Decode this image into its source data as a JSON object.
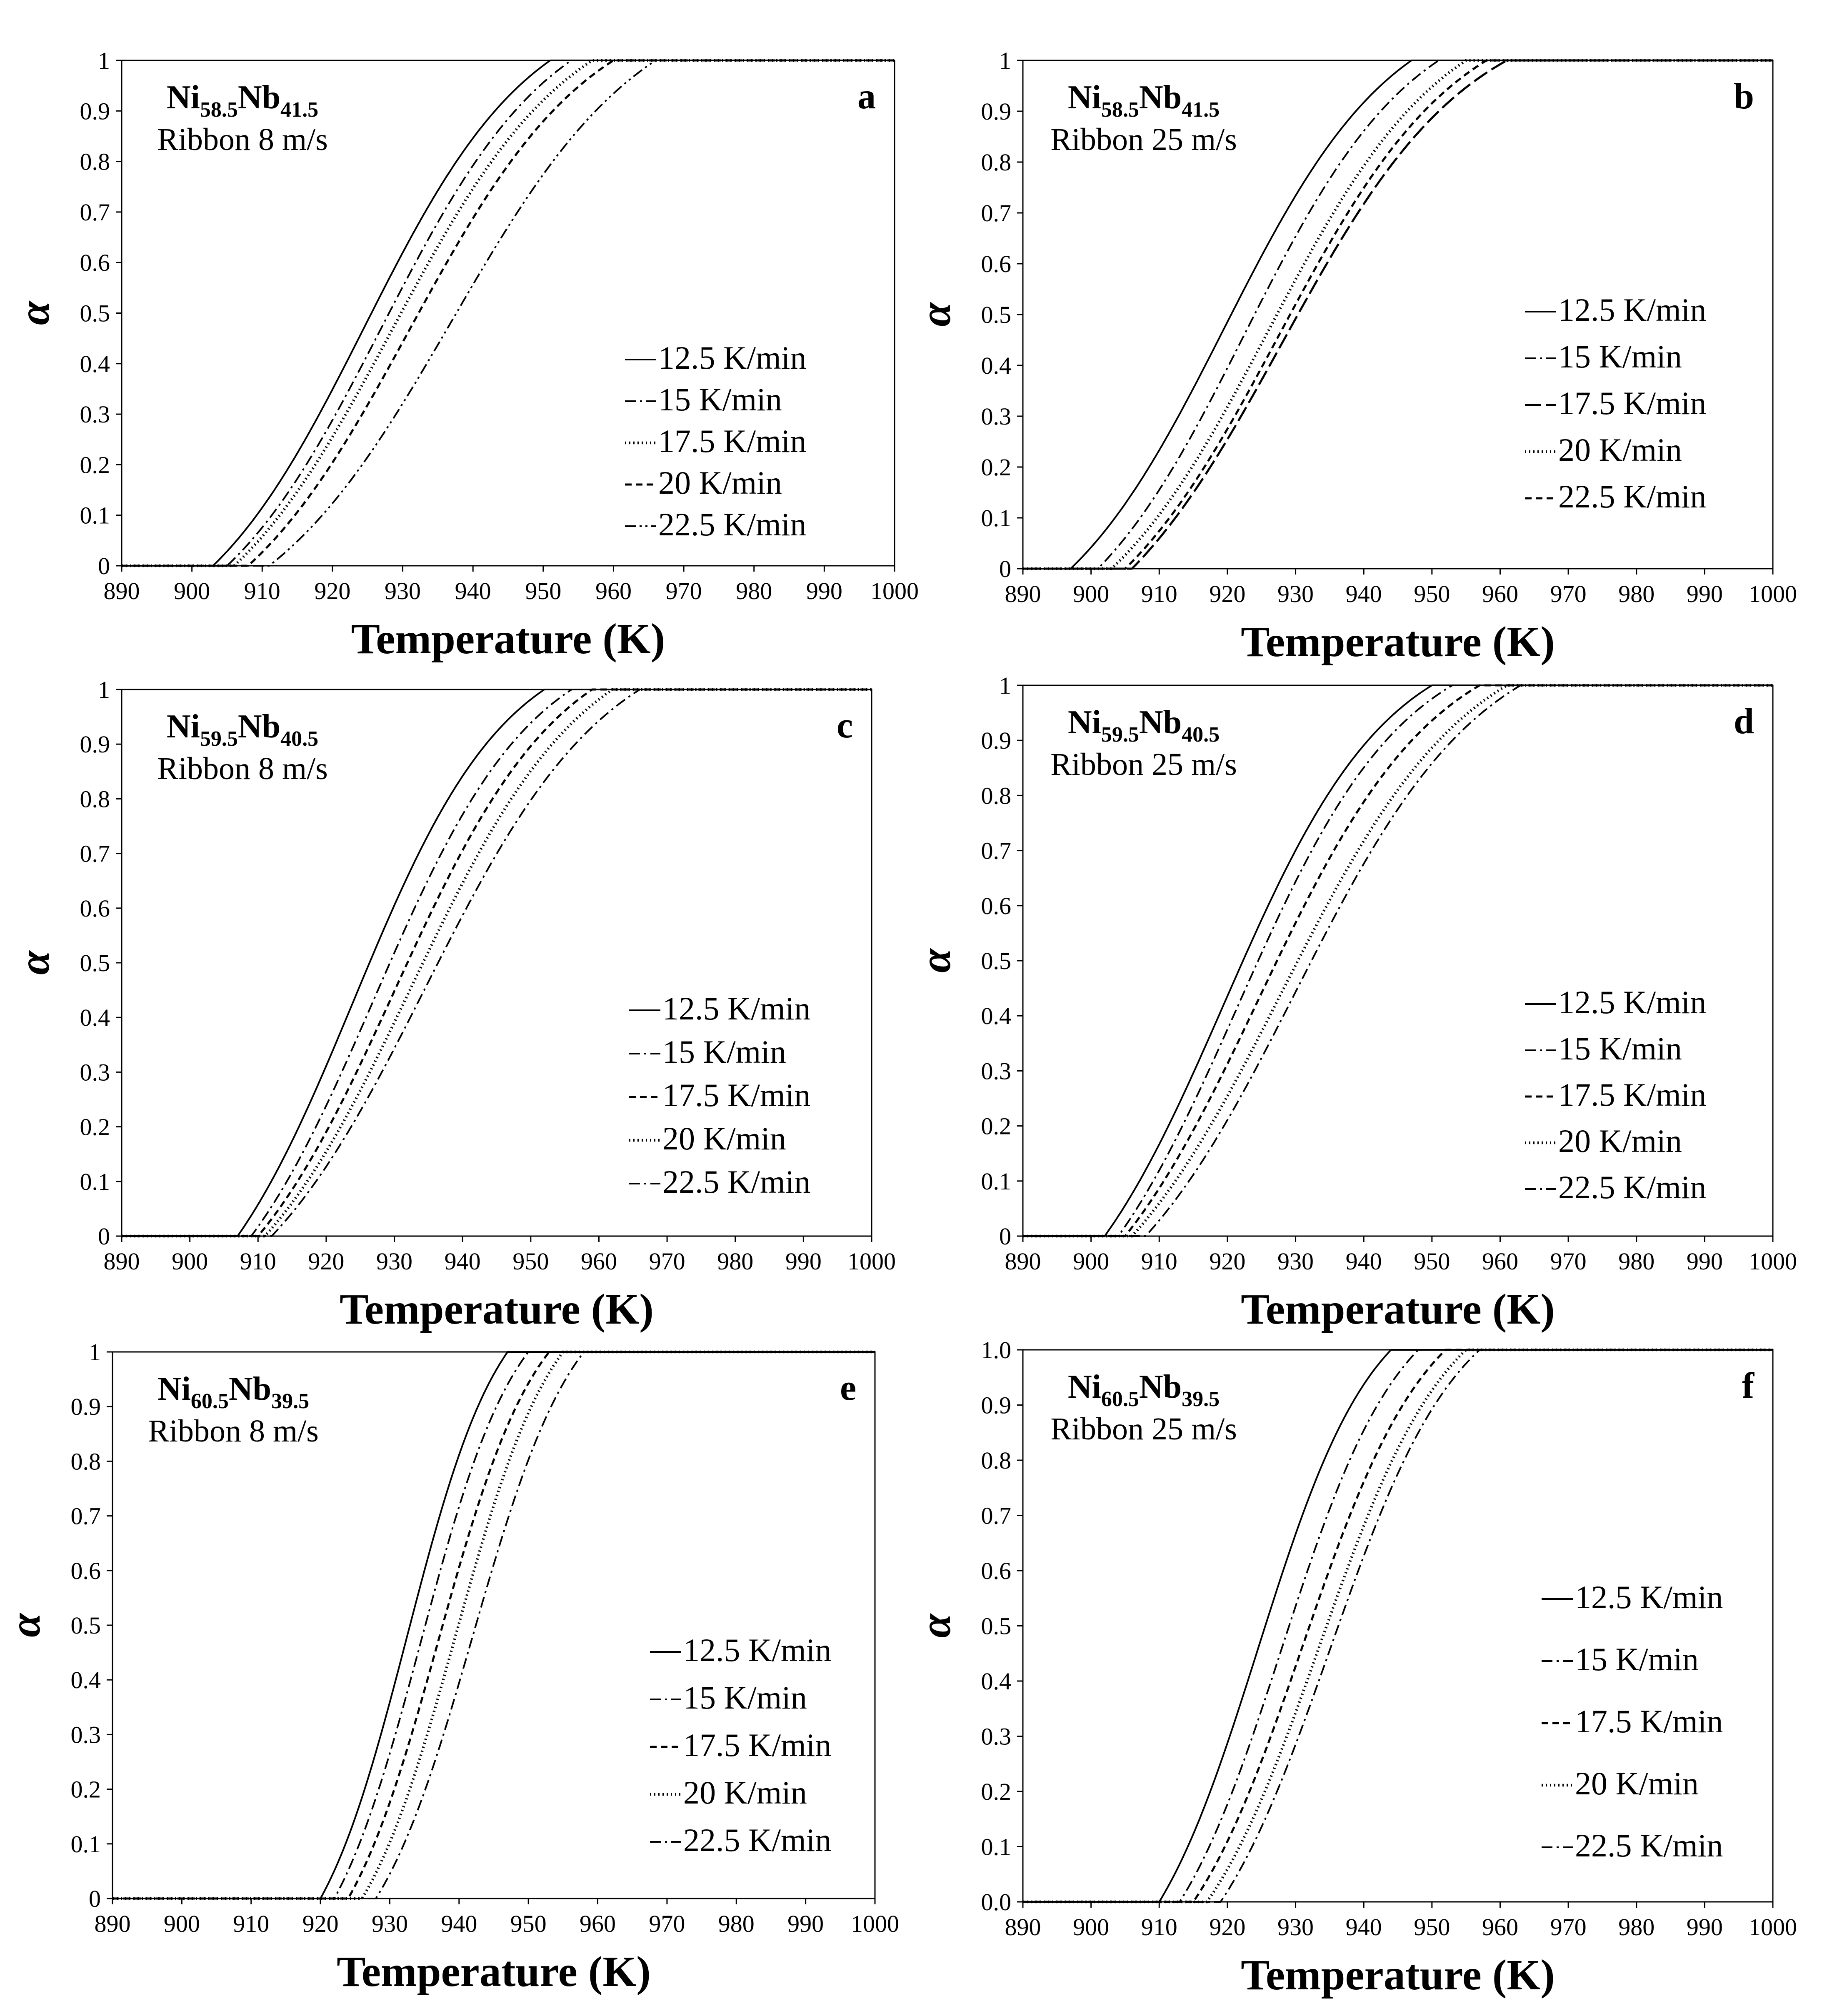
{
  "chart_data": [
    {
      "type": "line",
      "panel_label": "a",
      "composition": {
        "ni": "Ni",
        "ni_sub": "58.5",
        "nb": "Nb",
        "nb_sub": "41.5"
      },
      "ribbon": "Ribbon 8 m/s",
      "xlabel": "Temperature (K)",
      "ylabel": "α",
      "xlim": [
        890,
        1000
      ],
      "ylim": [
        0,
        1
      ],
      "xticks": [
        "890",
        "900",
        "910",
        "920",
        "930",
        "940",
        "950",
        "960",
        "970",
        "980",
        "990",
        "1000"
      ],
      "yticks": [
        "0",
        "0.1",
        "0.2",
        "0.3",
        "0.4",
        "0.5",
        "0.6",
        "0.7",
        "0.8",
        "0.9",
        "1"
      ],
      "legend_placement": "lower-right",
      "series": [
        {
          "name": "12.5 K/min",
          "style": "solid",
          "t_start": 903,
          "t_mid": 924.5,
          "t_end": 951
        },
        {
          "name": "15 K/min",
          "style": "dashdot",
          "t_start": 905,
          "t_mid": 927,
          "t_end": 954
        },
        {
          "name": "17.5 K/min",
          "style": "dotted",
          "t_start": 906,
          "t_mid": 928.5,
          "t_end": 957
        },
        {
          "name": "20 K/min",
          "style": "dashed",
          "t_start": 908,
          "t_mid": 931,
          "t_end": 960
        },
        {
          "name": "22.5 K/min",
          "style": "dashdotdot",
          "t_start": 911,
          "t_mid": 937,
          "t_end": 966
        }
      ]
    },
    {
      "type": "line",
      "panel_label": "b",
      "composition": {
        "ni": "Ni",
        "ni_sub": "58.5",
        "nb": "Nb",
        "nb_sub": "41.5"
      },
      "ribbon": "Ribbon 25 m/s",
      "xlabel": "Temperature (K)",
      "ylabel": "α",
      "xlim": [
        890,
        1000
      ],
      "ylim": [
        0,
        1
      ],
      "xticks": [
        "890",
        "900",
        "910",
        "920",
        "930",
        "940",
        "950",
        "960",
        "970",
        "980",
        "990",
        "1000"
      ],
      "yticks": [
        "0",
        "0.1",
        "0.2",
        "0.3",
        "0.4",
        "0.5",
        "0.6",
        "0.7",
        "0.8",
        "0.9",
        "1"
      ],
      "legend_placement": "lower-right",
      "series": [
        {
          "name": "12.5 K/min",
          "style": "solid",
          "t_start": 897,
          "t_mid": 919.5,
          "t_end": 947
        },
        {
          "name": "15 K/min",
          "style": "dashdot",
          "t_start": 901,
          "t_mid": 922.5,
          "t_end": 951
        },
        {
          "name": "17.5 K/min",
          "style": "longdash",
          "t_start": 906,
          "t_mid": 928,
          "t_end": 961
        },
        {
          "name": "20 K/min",
          "style": "dotted",
          "t_start": 903,
          "t_mid": 926,
          "t_end": 955
        },
        {
          "name": "22.5 K/min",
          "style": "dashed",
          "t_start": 905,
          "t_mid": 927.5,
          "t_end": 958
        }
      ]
    },
    {
      "type": "line",
      "panel_label": "c",
      "composition": {
        "ni": "Ni",
        "ni_sub": "59.5",
        "nb": "Nb",
        "nb_sub": "40.5"
      },
      "ribbon": "Ribbon 8 m/s",
      "xlabel": "Temperature (K)",
      "ylabel": "α",
      "xlim": [
        890,
        1000
      ],
      "ylim": [
        0,
        1
      ],
      "xticks": [
        "890",
        "900",
        "910",
        "920",
        "930",
        "940",
        "950",
        "960",
        "970",
        "980",
        "990",
        "1000"
      ],
      "yticks": [
        "0",
        "0.1",
        "0.2",
        "0.3",
        "0.4",
        "0.5",
        "0.6",
        "0.7",
        "0.8",
        "0.9",
        "1"
      ],
      "legend_placement": "lower-right",
      "series": [
        {
          "name": "12.5 K/min",
          "style": "solid",
          "t_start": 907,
          "t_mid": 924,
          "t_end": 952
        },
        {
          "name": "15 K/min",
          "style": "dashdot",
          "t_start": 909,
          "t_mid": 927,
          "t_end": 956
        },
        {
          "name": "17.5 K/min",
          "style": "dashed",
          "t_start": 910,
          "t_mid": 930,
          "t_end": 959
        },
        {
          "name": "20 K/min",
          "style": "dotted",
          "t_start": 911,
          "t_mid": 932.5,
          "t_end": 962
        },
        {
          "name": "22.5 K/min",
          "style": "dashdot",
          "t_start": 912,
          "t_mid": 934.5,
          "t_end": 966
        }
      ]
    },
    {
      "type": "line",
      "panel_label": "d",
      "composition": {
        "ni": "Ni",
        "ni_sub": "59.5",
        "nb": "Nb",
        "nb_sub": "40.5"
      },
      "ribbon": "Ribbon 25 m/s",
      "xlabel": "Temperature (K)",
      "ylabel": "α",
      "xlim": [
        890,
        1000
      ],
      "ylim": [
        0,
        1
      ],
      "xticks": [
        "890",
        "900",
        "910",
        "920",
        "930",
        "940",
        "950",
        "960",
        "970",
        "980",
        "990",
        "1000"
      ],
      "yticks": [
        "0",
        "0.1",
        "0.2",
        "0.3",
        "0.4",
        "0.5",
        "0.6",
        "0.7",
        "0.8",
        "0.9",
        "1"
      ],
      "legend_placement": "lower-right",
      "series": [
        {
          "name": "12.5 K/min",
          "style": "solid",
          "t_start": 902,
          "t_mid": 919.5,
          "t_end": 950
        },
        {
          "name": "15 K/min",
          "style": "dashdot",
          "t_start": 904,
          "t_mid": 921.5,
          "t_end": 953
        },
        {
          "name": "17.5 K/min",
          "style": "dashed",
          "t_start": 905,
          "t_mid": 924.5,
          "t_end": 957
        },
        {
          "name": "20 K/min",
          "style": "dotted",
          "t_start": 906,
          "t_mid": 928,
          "t_end": 961
        },
        {
          "name": "22.5 K/min",
          "style": "dashdot",
          "t_start": 908,
          "t_mid": 930,
          "t_end": 963
        }
      ]
    },
    {
      "type": "line",
      "panel_label": "e",
      "composition": {
        "ni": "Ni",
        "ni_sub": "60.5",
        "nb": "Nb",
        "nb_sub": "39.5"
      },
      "ribbon": "Ribbon 8 m/s",
      "xlabel": "Temperature (K)",
      "ylabel": "α",
      "xlim": [
        890,
        1000
      ],
      "ylim": [
        0,
        1
      ],
      "xticks": [
        "890",
        "900",
        "910",
        "920",
        "930",
        "940",
        "950",
        "960",
        "970",
        "980",
        "990",
        "1000"
      ],
      "yticks": [
        "0",
        "0.1",
        "0.2",
        "0.3",
        "0.4",
        "0.5",
        "0.6",
        "0.7",
        "0.8",
        "0.9",
        "1"
      ],
      "legend_placement": "lower-right",
      "series": [
        {
          "name": "12.5 K/min",
          "style": "solid",
          "t_start": 920,
          "t_mid": 932.5,
          "t_end": 947
        },
        {
          "name": "15 K/min",
          "style": "dashdot",
          "t_start": 922,
          "t_mid": 934.5,
          "t_end": 950
        },
        {
          "name": "17.5 K/min",
          "style": "dashed",
          "t_start": 924,
          "t_mid": 937,
          "t_end": 953
        },
        {
          "name": "20 K/min",
          "style": "dotted",
          "t_start": 926,
          "t_mid": 939.5,
          "t_end": 955
        },
        {
          "name": "22.5 K/min",
          "style": "dashdot",
          "t_start": 928,
          "t_mid": 942,
          "t_end": 958
        }
      ]
    },
    {
      "type": "line",
      "panel_label": "f",
      "composition": {
        "ni": "Ni",
        "ni_sub": "60.5",
        "nb": "Nb",
        "nb_sub": "39.5"
      },
      "ribbon": "Ribbon 25 m/s",
      "xlabel": "Temperature (K)",
      "ylabel": "α",
      "xlim": [
        890,
        1000
      ],
      "ylim": [
        0,
        1
      ],
      "xticks": [
        "890",
        "900",
        "910",
        "920",
        "930",
        "940",
        "950",
        "960",
        "970",
        "980",
        "990",
        "1000"
      ],
      "yticks": [
        "0.0",
        "0.1",
        "0.2",
        "0.3",
        "0.4",
        "0.5",
        "0.6",
        "0.7",
        "0.8",
        "0.9",
        "1.0"
      ],
      "legend_placement": "lower-right",
      "series": [
        {
          "name": "12.5 K/min",
          "style": "solid",
          "t_start": 910,
          "t_mid": 924.5,
          "t_end": 944
        },
        {
          "name": "15 K/min",
          "style": "dashdot",
          "t_start": 913,
          "t_mid": 928,
          "t_end": 948
        },
        {
          "name": "17.5 K/min",
          "style": "dashed",
          "t_start": 915,
          "t_mid": 931,
          "t_end": 952
        },
        {
          "name": "20 K/min",
          "style": "dotted",
          "t_start": 917,
          "t_mid": 933.5,
          "t_end": 955
        },
        {
          "name": "22.5 K/min",
          "style": "dashdot",
          "t_start": 919,
          "t_mid": 935,
          "t_end": 957
        }
      ]
    }
  ]
}
